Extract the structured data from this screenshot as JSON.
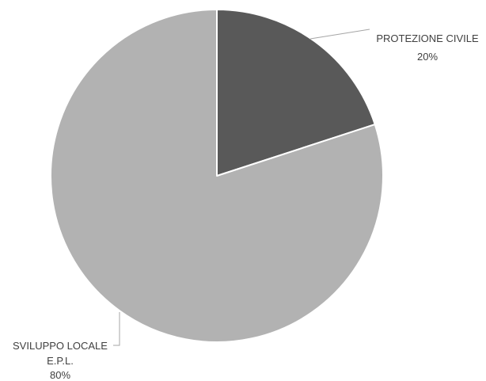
{
  "chart_data": {
    "type": "pie",
    "title": "",
    "legend": "none",
    "start_angle_deg": 0,
    "direction": "clockwise",
    "slices": [
      {
        "label": "PROTEZIONE CIVILE",
        "value": 20,
        "pct_label": "20%",
        "color": "#595959"
      },
      {
        "label": "SVILUPPO LOCALE E.P.L.",
        "value": 80,
        "pct_label": "80%",
        "color": "#b2b2b2"
      }
    ]
  },
  "labels": {
    "protezione": {
      "line1": "PROTEZIONE CIVILE",
      "line2": "20%"
    },
    "sviluppo": {
      "line1": "SVILUPPO LOCALE",
      "line2": "E.P.L.",
      "line3": "80%"
    }
  },
  "colors": {
    "slice_border": "#ffffff",
    "leader_line": "#a6a6a6",
    "label_text": "#404040"
  }
}
